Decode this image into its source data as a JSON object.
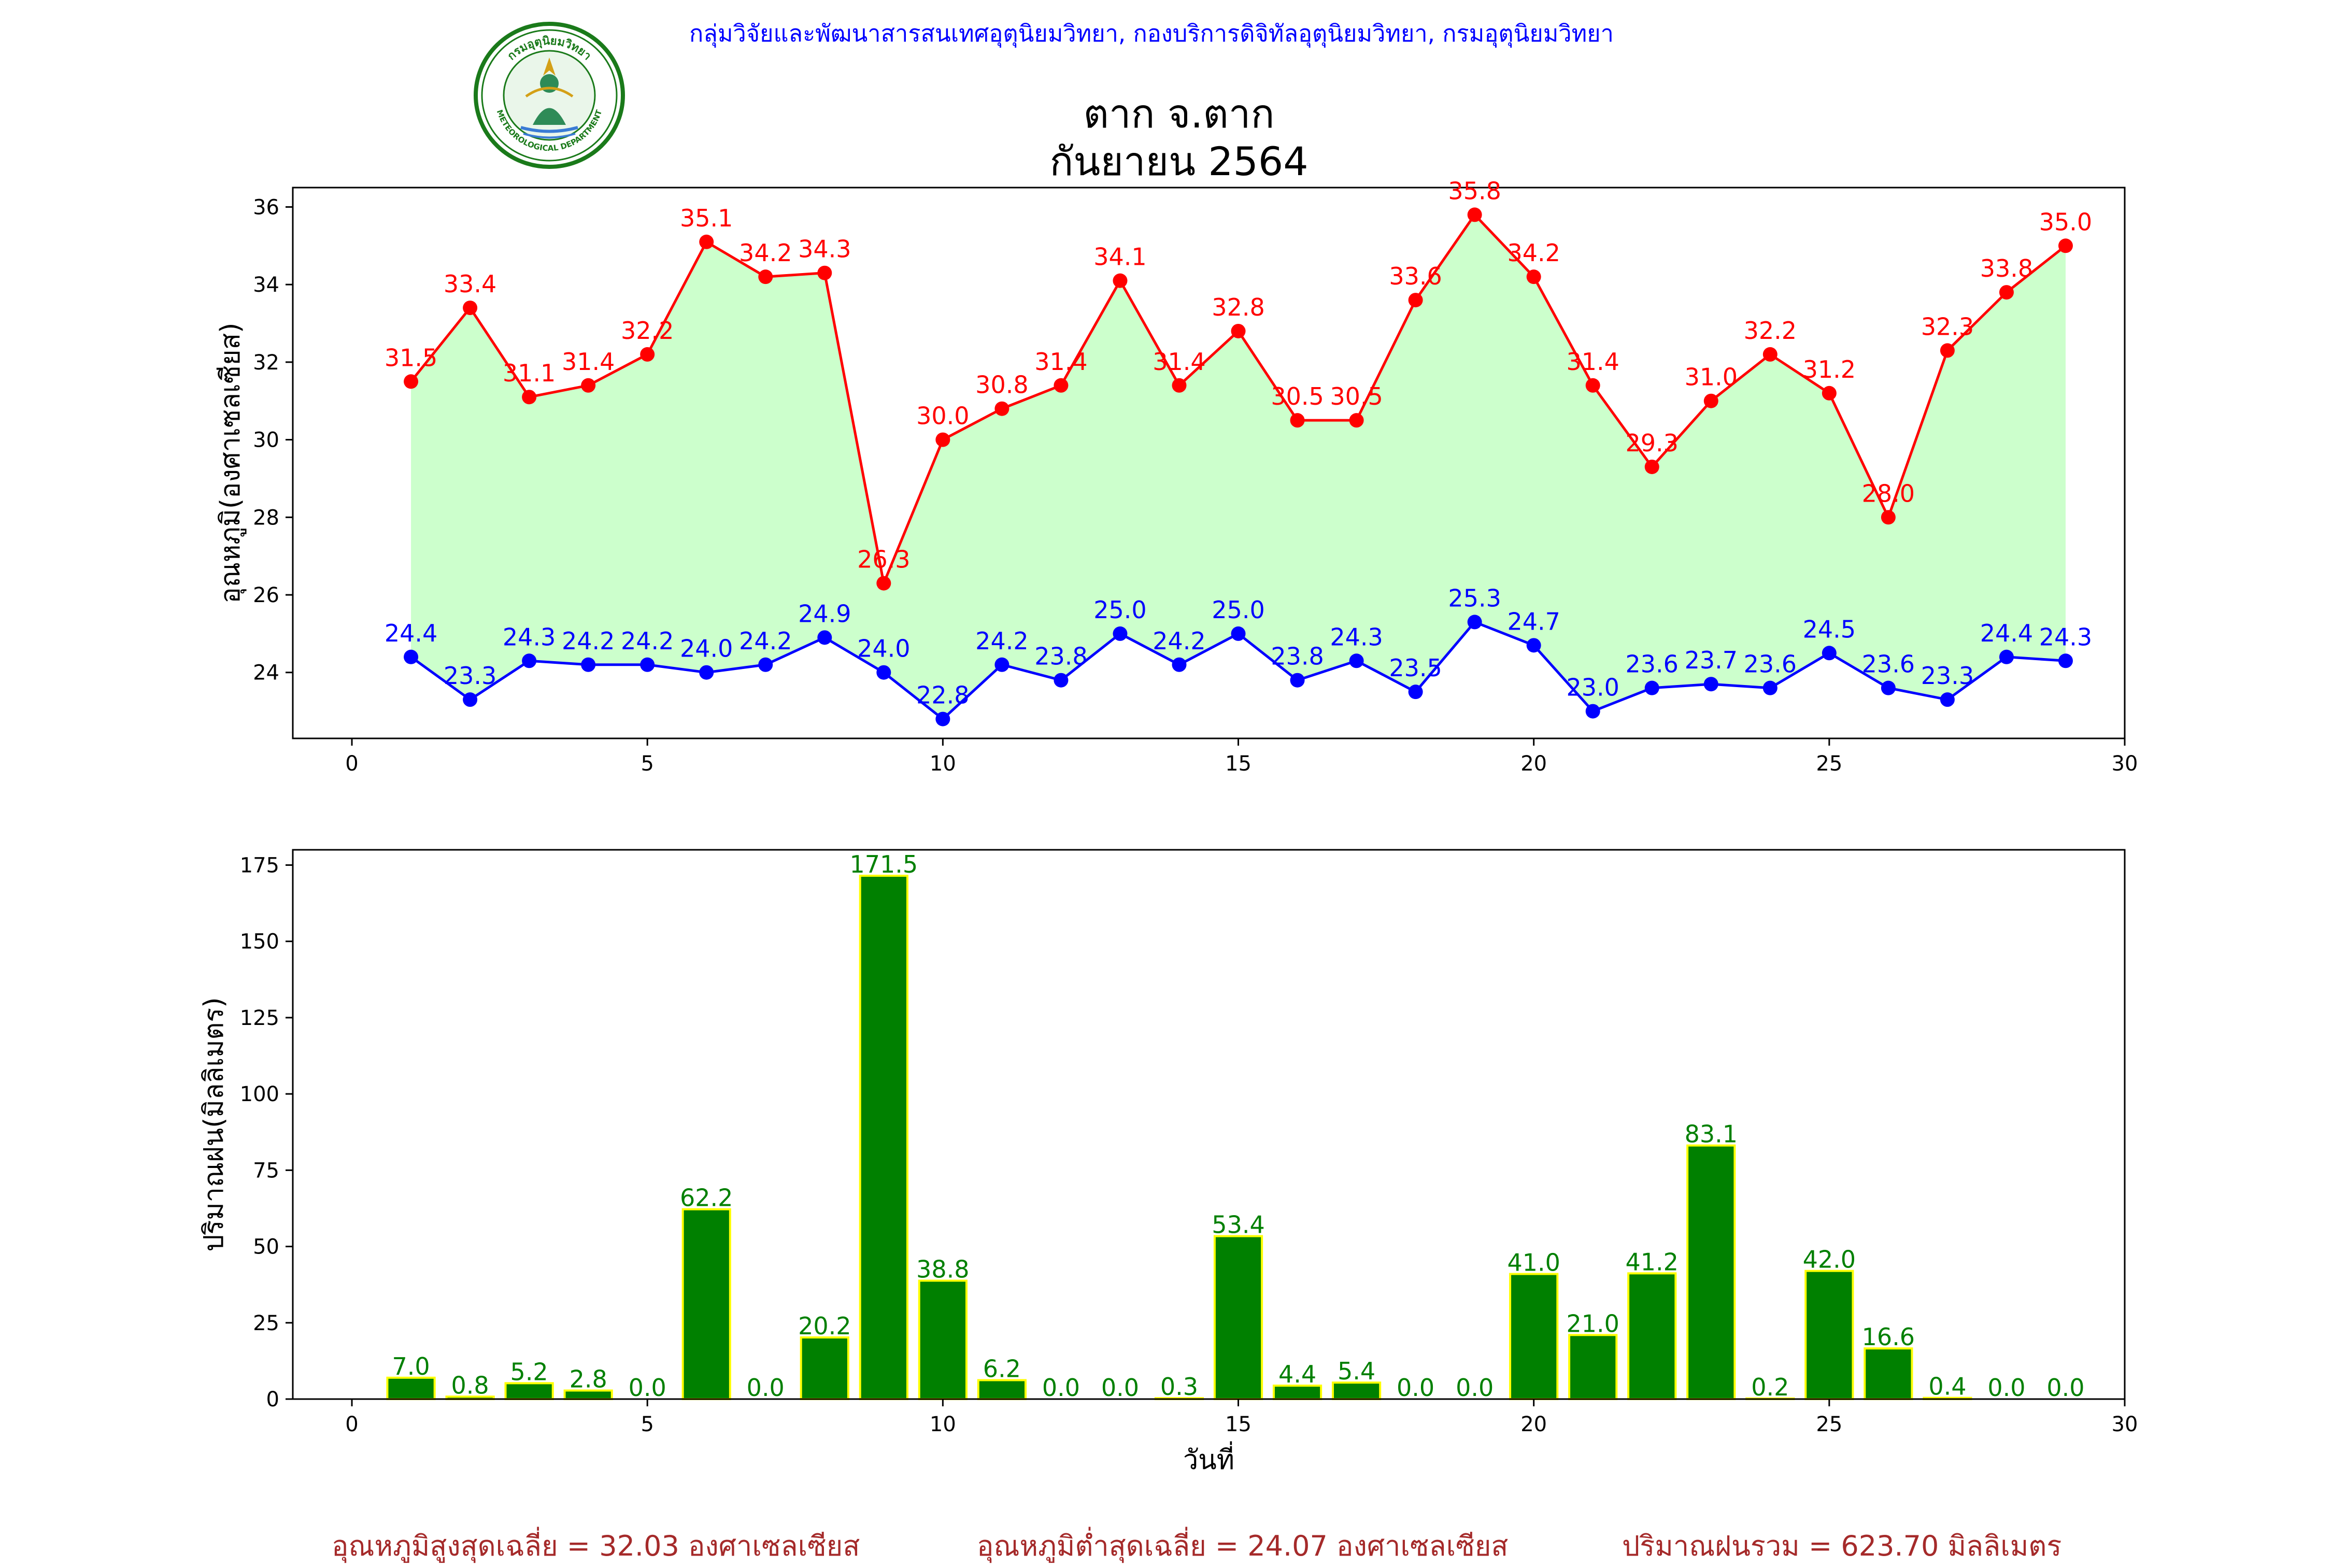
{
  "header": {
    "text": "กลุ่มวิจัยและพัฒนาสารสนเทศอุตุนิยมวิทยา, กองบริการดิจิทัลอุตุนิยมวิทยา, กรมอุตุนิยมวิทยา",
    "text_color": "#0000ff",
    "logo_lettering_top": "กรมอุตุนิยมวิทยา",
    "logo_lettering_bottom": "METEOROLOGICAL DEPARTMENT"
  },
  "title": {
    "line1": "ตาก จ.ตาก",
    "line2": "กันยายน 2564"
  },
  "chart_data": [
    {
      "type": "line",
      "ylabel": "อุณหภูมิ(องศาเซลเซียส)",
      "xlabel": "",
      "xlim": [
        -1,
        30
      ],
      "ylim": [
        22.3,
        36.5
      ],
      "xticks": [
        0,
        5,
        10,
        15,
        20,
        25,
        30
      ],
      "yticks": [
        24,
        26,
        28,
        30,
        32,
        34,
        36
      ],
      "grid": false,
      "x": [
        1,
        2,
        3,
        4,
        5,
        6,
        7,
        8,
        9,
        10,
        11,
        12,
        13,
        14,
        15,
        16,
        17,
        18,
        19,
        20,
        21,
        22,
        23,
        24,
        25,
        26,
        27,
        28,
        29
      ],
      "series": [
        {
          "color": "#ff0000",
          "values": [
            31.5,
            33.4,
            31.1,
            31.4,
            32.2,
            35.1,
            34.2,
            34.3,
            26.3,
            30.0,
            30.8,
            31.4,
            34.1,
            31.4,
            32.8,
            30.5,
            30.5,
            33.6,
            35.8,
            34.2,
            31.4,
            29.3,
            31.0,
            32.2,
            31.2,
            28.0,
            32.3,
            33.8,
            35.0
          ]
        },
        {
          "color": "#0000ff",
          "values": [
            24.4,
            23.3,
            24.3,
            24.2,
            24.2,
            24.0,
            24.2,
            24.9,
            24.0,
            22.8,
            24.2,
            23.8,
            25.0,
            24.2,
            25.0,
            23.8,
            24.3,
            23.5,
            25.3,
            24.7,
            23.0,
            23.6,
            23.7,
            23.6,
            24.5,
            23.6,
            23.3,
            24.4,
            24.3
          ]
        }
      ],
      "fill_color": "#ccffcc"
    },
    {
      "type": "bar",
      "ylabel": "ปริมาณฝน(มิลลิเมตร)",
      "xlabel": "วันที่",
      "xlim": [
        -1,
        30
      ],
      "ylim": [
        0,
        180
      ],
      "xticks": [
        0,
        5,
        10,
        15,
        20,
        25,
        30
      ],
      "yticks": [
        0,
        25,
        50,
        75,
        100,
        125,
        150,
        175
      ],
      "grid": false,
      "bar_color": "#008000",
      "edge_color": "#ffff00",
      "label_color": "#008000",
      "x": [
        1,
        2,
        3,
        4,
        5,
        6,
        7,
        8,
        9,
        10,
        11,
        12,
        13,
        14,
        15,
        16,
        17,
        18,
        19,
        20,
        21,
        22,
        23,
        24,
        25,
        26,
        27,
        28,
        29
      ],
      "values": [
        7.0,
        0.8,
        5.2,
        2.8,
        0.0,
        62.2,
        0.0,
        20.2,
        171.5,
        38.8,
        6.2,
        0.0,
        0.0,
        0.3,
        53.4,
        4.4,
        5.4,
        0.0,
        0.0,
        41.0,
        21.0,
        41.2,
        83.1,
        0.2,
        42.0,
        16.6,
        0.4,
        0.0,
        0.0
      ]
    }
  ],
  "footer": {
    "avg_max": "อุณหภูมิสูงสุดเฉลี่ย = 32.03 องศาเซลเซียส",
    "avg_min": "อุณหภูมิต่ำสุดเฉลี่ย = 24.07 องศาเซลเซียส",
    "total_rain": "ปริมาณฝนรวม = 623.70 มิลลิเมตร",
    "color": "#a52a2a"
  }
}
